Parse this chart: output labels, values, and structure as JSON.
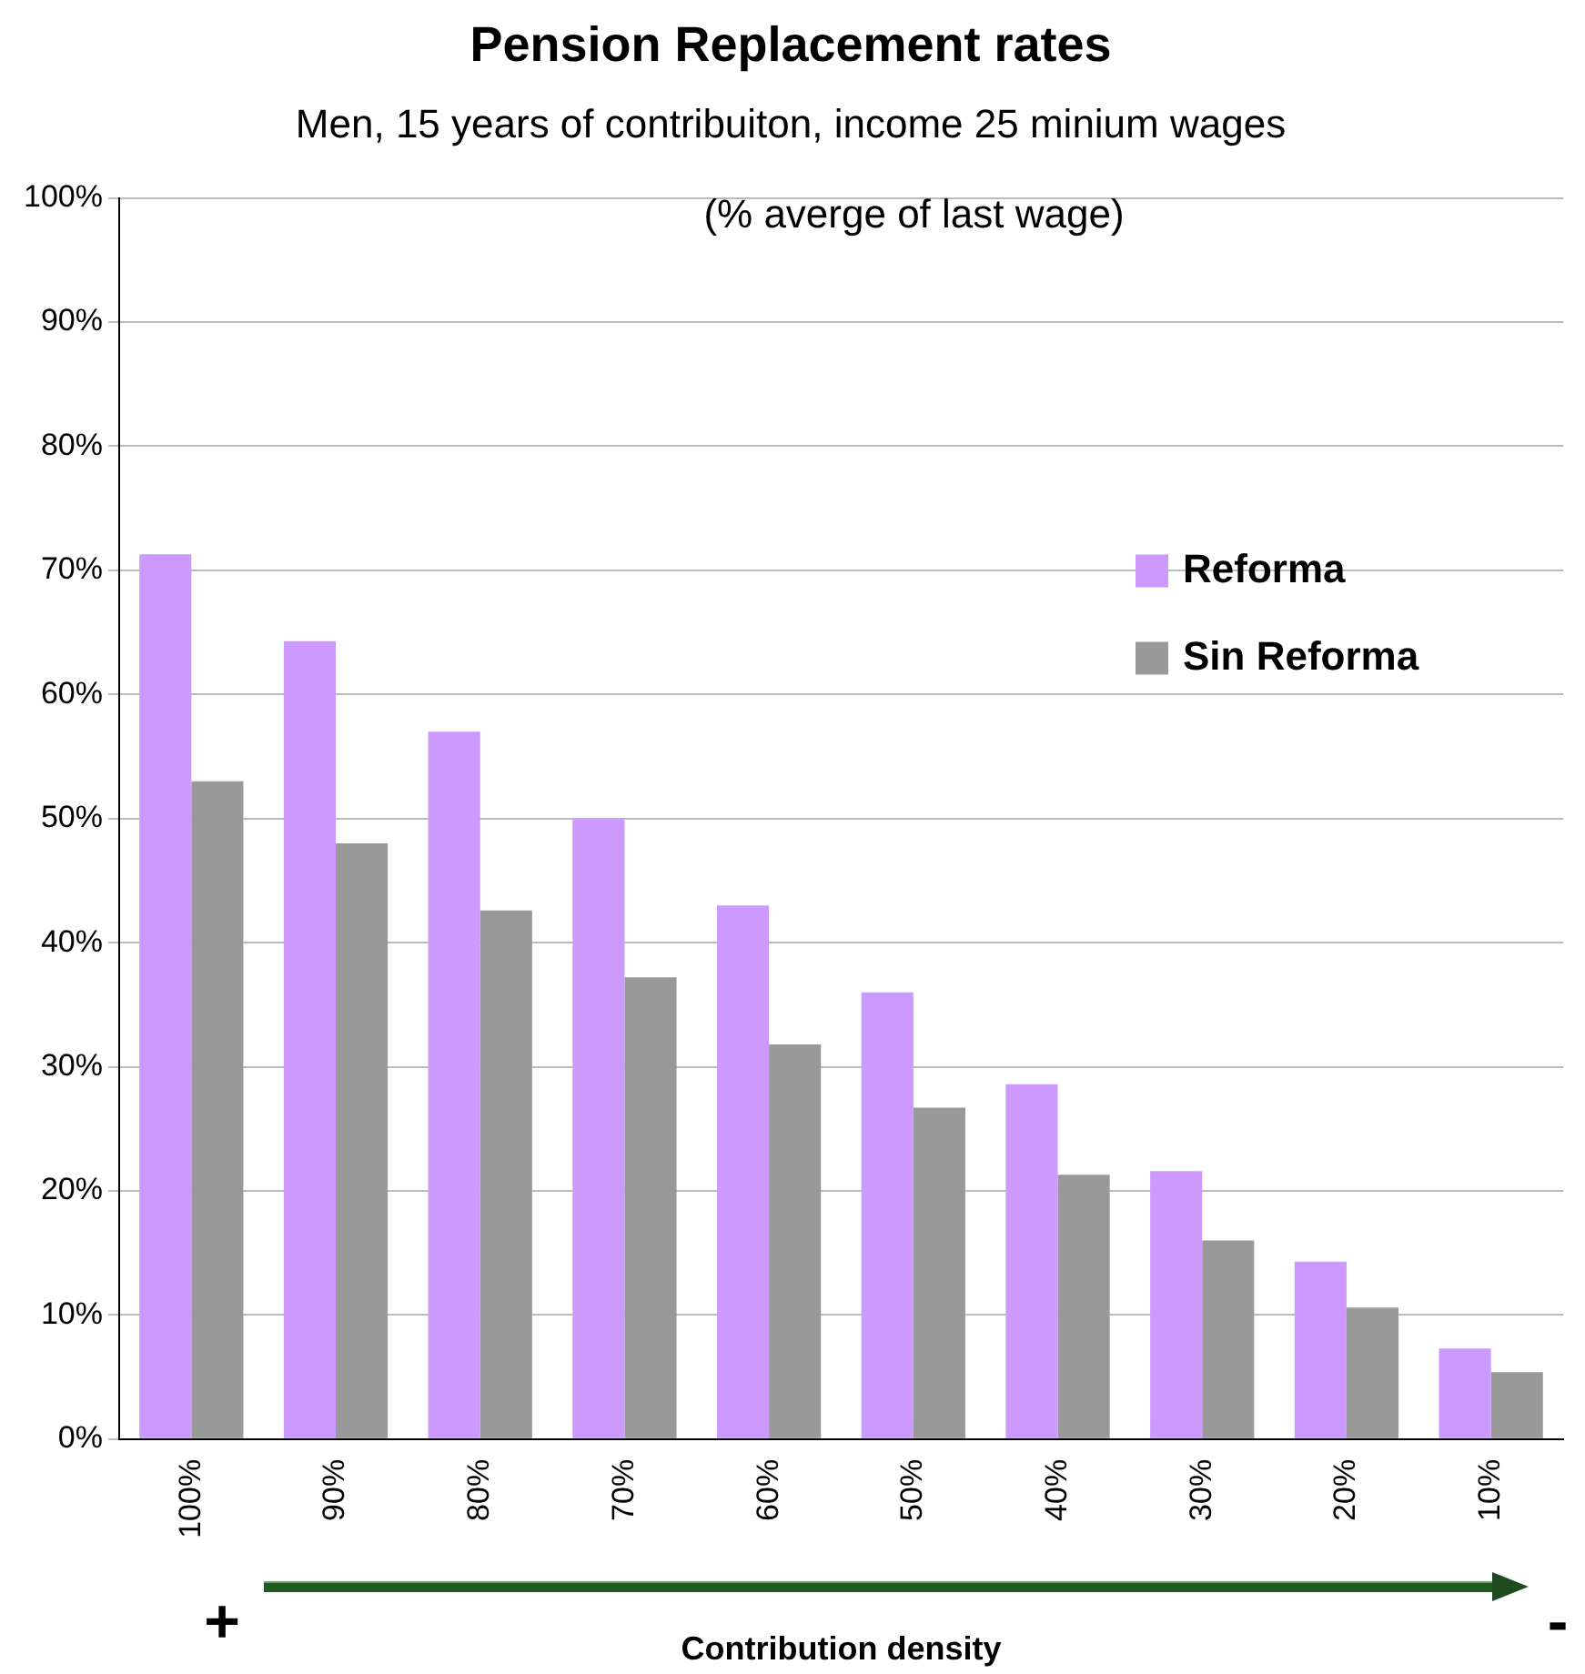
{
  "chart_data": {
    "type": "bar",
    "title": "Pension Replacement rates",
    "subtitle": "Men, 15 years of contribuiton, income 25 minium wages",
    "xlabel": "Contribution density",
    "annotations": [
      "(% averge of last wage)",
      "+",
      "-"
    ],
    "categories": [
      "100%",
      "90%",
      "80%",
      "70%",
      "60%",
      "50%",
      "40%",
      "30%",
      "20%",
      "10%"
    ],
    "series": [
      {
        "name": "Reforma",
        "color": "#cc99ff",
        "values": [
          71.3,
          64.3,
          57,
          50,
          43,
          36,
          28.6,
          21.6,
          14.3,
          7.3
        ]
      },
      {
        "name": "Sin Reforma",
        "color": "#999999",
        "values": [
          53,
          48,
          42.6,
          37.2,
          31.8,
          26.7,
          21.3,
          16,
          10.6,
          5.4
        ]
      }
    ],
    "ylim": [
      0,
      100
    ],
    "yticks": [
      {
        "value": 0,
        "label": "0%"
      },
      {
        "value": 10,
        "label": "10%"
      },
      {
        "value": 20,
        "label": "20%"
      },
      {
        "value": 30,
        "label": "30%"
      },
      {
        "value": 40,
        "label": "40%"
      },
      {
        "value": 50,
        "label": "50%"
      },
      {
        "value": 60,
        "label": "60%"
      },
      {
        "value": 70,
        "label": "70%"
      },
      {
        "value": 80,
        "label": "80%"
      },
      {
        "value": 90,
        "label": "90%"
      },
      {
        "value": 100,
        "label": "100%"
      }
    ],
    "grid": "y",
    "legend": "right"
  }
}
